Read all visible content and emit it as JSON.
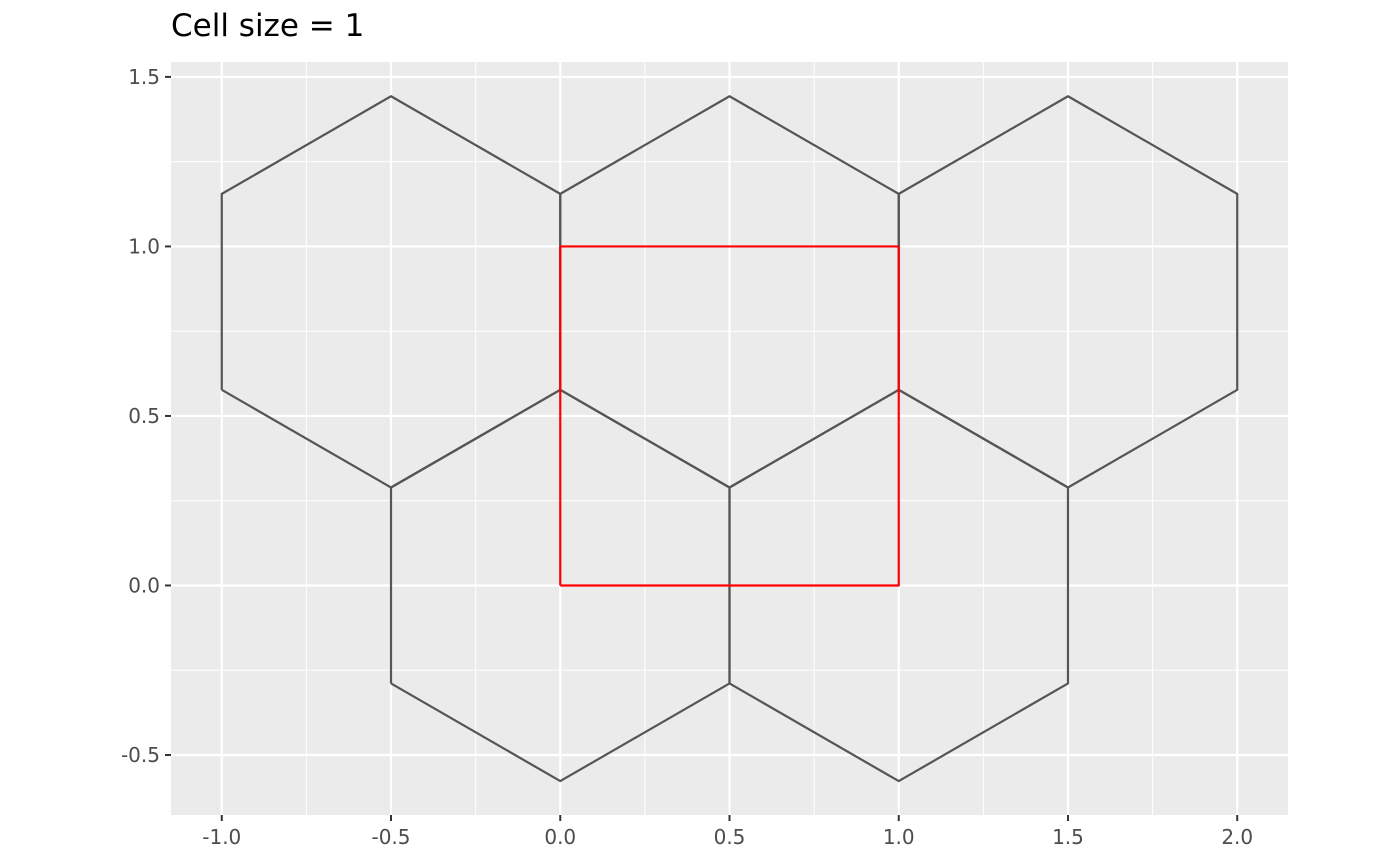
{
  "chart_data": {
    "type": "line",
    "title": "Cell size = 1",
    "xlabel": "",
    "ylabel": "",
    "xlim": [
      -1.15,
      2.15
    ],
    "ylim": [
      -0.677,
      1.544
    ],
    "x_ticks": [
      -1.0,
      -0.5,
      0.0,
      0.5,
      1.0,
      1.5,
      2.0
    ],
    "x_tick_labels": [
      "-1.0",
      "-0.5",
      "0.0",
      "0.5",
      "1.0",
      "1.5",
      "2.0"
    ],
    "y_ticks": [
      -0.5,
      0.0,
      0.5,
      1.0,
      1.5
    ],
    "y_tick_labels": [
      "-0.5",
      "0.0",
      "0.5",
      "1.0",
      "1.5"
    ],
    "grid": true,
    "colors": {
      "panel_background": "#ebebeb",
      "grid": "#ffffff",
      "hexagon_stroke": "#555555",
      "square_stroke": "#ff0000",
      "tick_text": "#4d4d4d"
    },
    "series": [
      {
        "shape": "hexagon",
        "color": "#555555",
        "x": [
          -1.0,
          -0.5,
          0.0,
          0.0,
          -0.5,
          -1.0,
          -1.0
        ],
        "y": [
          0.577,
          0.289,
          0.577,
          1.155,
          1.443,
          1.155,
          0.577
        ]
      },
      {
        "shape": "hexagon",
        "color": "#555555",
        "x": [
          0.0,
          0.5,
          1.0,
          1.0,
          0.5,
          0.0,
          0.0
        ],
        "y": [
          0.577,
          0.289,
          0.577,
          1.155,
          1.443,
          1.155,
          0.577
        ]
      },
      {
        "shape": "hexagon",
        "color": "#555555",
        "x": [
          1.0,
          1.5,
          2.0,
          2.0,
          1.5,
          1.0,
          1.0
        ],
        "y": [
          0.577,
          0.289,
          0.577,
          1.155,
          1.443,
          1.155,
          0.577
        ]
      },
      {
        "shape": "hexagon",
        "color": "#555555",
        "x": [
          -0.5,
          0.0,
          0.5,
          0.5,
          0.0,
          -0.5,
          -0.5
        ],
        "y": [
          -0.289,
          -0.577,
          -0.289,
          0.289,
          0.577,
          0.289,
          -0.289
        ]
      },
      {
        "shape": "hexagon",
        "color": "#555555",
        "x": [
          0.5,
          1.0,
          1.5,
          1.5,
          1.0,
          0.5,
          0.5
        ],
        "y": [
          -0.289,
          -0.577,
          -0.289,
          0.289,
          0.577,
          0.289,
          -0.289
        ]
      },
      {
        "shape": "square",
        "color": "#ff0000",
        "x": [
          0.0,
          1.0,
          1.0,
          0.0,
          0.0
        ],
        "y": [
          0.0,
          0.0,
          1.0,
          1.0,
          0.0
        ]
      }
    ]
  }
}
